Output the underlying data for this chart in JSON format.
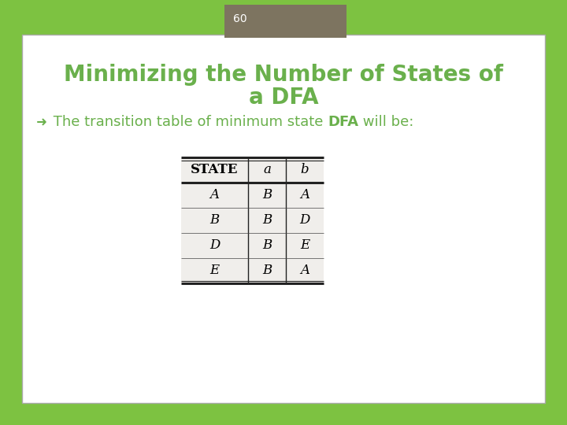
{
  "slide_number": "60",
  "title_line1": "Minimizing the Number of States of",
  "title_line2": "a DFA",
  "title_color": "#6ab04c",
  "bullet_text1": " The transition table of minimum state ",
  "bullet_text2": "DFA",
  "bullet_text3": " will be:",
  "bullet_color": "#6ab04c",
  "table_headers": [
    "STATE",
    "a",
    "b"
  ],
  "table_rows": [
    [
      "A",
      "B",
      "A"
    ],
    [
      "B",
      "B",
      "D"
    ],
    [
      "D",
      "B",
      "E"
    ],
    [
      "E",
      "B",
      "A"
    ]
  ],
  "background_outer": "#7dc241",
  "background_inner": "#ffffff",
  "header_box_color": "#7d7460",
  "slide_number_text_color": "#ffffff",
  "body_text_color": "#222222",
  "table_font_size": 11,
  "title_font_size": 20,
  "bullet_font_size": 13
}
